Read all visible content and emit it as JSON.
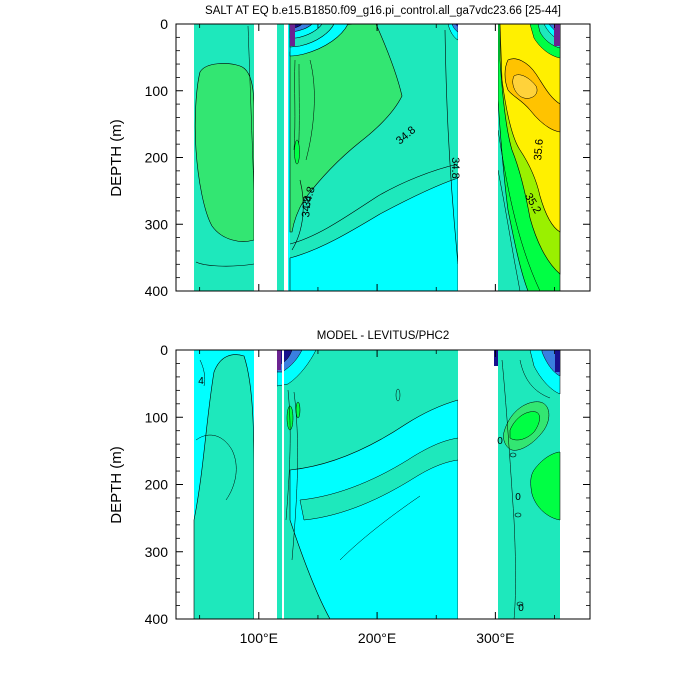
{
  "chart_data": [
    {
      "type": "contour",
      "title": "SALT AT EQ b.e15.B1850.f09_g16.pi_control.all_ga7vdc23.66 [25-44]",
      "ylabel": "DEPTH (m)",
      "xlim": [
        30,
        380
      ],
      "ylim": [
        0,
        400
      ],
      "y_reversed": true,
      "yticks": [
        0,
        100,
        200,
        300,
        400
      ],
      "xticks": [
        100,
        200,
        300
      ],
      "xtick_labels": [
        "100°E",
        "200°E",
        "300°E"
      ],
      "land_gaps": [
        [
          97,
          118
        ],
        [
          128,
          130
        ],
        [
          279,
          315
        ]
      ],
      "contour_labels": [
        {
          "text": "34.8",
          "x": 214,
          "y": 165
        },
        {
          "text": "34.8",
          "x": 270,
          "y": 212
        },
        {
          "text": "34.8",
          "x": 145,
          "y": 262
        },
        {
          "text": "34.8",
          "x": 145,
          "y": 265
        },
        {
          "text": "35.6",
          "x": 359,
          "y": 178
        },
        {
          "text": "35.2",
          "x": 355,
          "y": 262
        }
      ],
      "colors": {
        "teal": "#1ee8bc",
        "cyan": "#00ffff",
        "green_light": "#33e672",
        "green": "#00ff44",
        "lime": "#9af000",
        "yellow": "#fff000",
        "gold": "#ffc300",
        "navy": "#18108e",
        "violet": "#8a1fc7",
        "purple": "#6b2390"
      }
    },
    {
      "type": "contour",
      "title": "MODEL - LEVITUS/PHC2",
      "ylabel": "DEPTH (m)",
      "xlim": [
        30,
        380
      ],
      "ylim": [
        0,
        400
      ],
      "y_reversed": true,
      "yticks": [
        0,
        100,
        200,
        300,
        400
      ],
      "xticks": [
        100,
        200,
        300
      ],
      "xtick_labels": [
        "100°E",
        "200°E",
        "300°E"
      ],
      "land_gaps": [
        [
          97,
          118
        ],
        [
          123,
          125
        ],
        [
          279,
          315
        ]
      ],
      "contour_labels": [
        {
          "text": "4",
          "x": 49,
          "y": 45
        },
        {
          "text": "0",
          "x": 322,
          "y": 136
        },
        {
          "text": "0",
          "x": 354,
          "y": 218
        },
        {
          "text": "0",
          "x": 345,
          "y": 385
        }
      ],
      "colors": {
        "teal": "#1ee8bc",
        "cyan": "#00ffff",
        "green_light": "#33e672",
        "green": "#00ff44",
        "navy": "#18108e",
        "violet": "#8a1fc7"
      }
    }
  ]
}
